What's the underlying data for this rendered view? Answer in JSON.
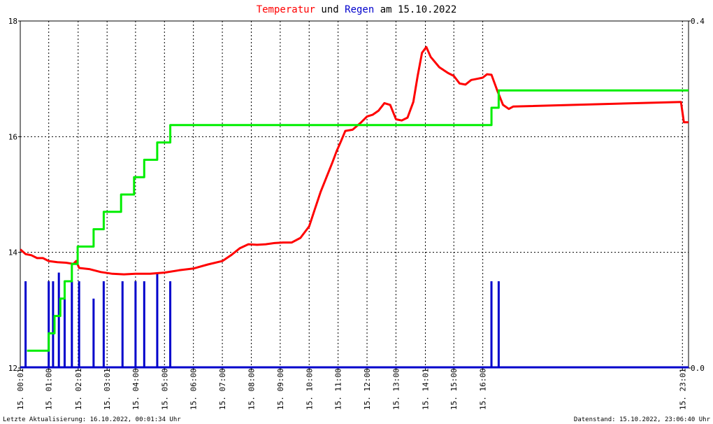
{
  "colors": {
    "temperature": "#ff0000",
    "rain_bars": "#0000cc",
    "rain_cumulative": "#00ee00",
    "grid": "#000000",
    "title_text": "#000000"
  },
  "title": {
    "part1": "Temperatur",
    "part2": " und ",
    "part3": "Regen",
    "part4": " am 15.10.2022"
  },
  "footer": {
    "left": "Letzte Aktualisierung: 16.10.2022, 00:01:34 Uhr",
    "right": "Datenstand: 15.10.2022, 23:06:40 Uhr"
  },
  "chart_data": {
    "type": "line",
    "title": "Temperatur und Regen am 15.10.2022",
    "x_unit": "hours since 00:00 on 15.10.2022",
    "xlim": [
      0.0167,
      23.111
    ],
    "x_ticks": [
      {
        "x": 0.0167,
        "label": "15. 00:01"
      },
      {
        "x": 1.0,
        "label": "15. 01:00"
      },
      {
        "x": 2.0167,
        "label": "15. 02:01"
      },
      {
        "x": 3.0167,
        "label": "15. 03:01"
      },
      {
        "x": 4.0,
        "label": "15. 04:00"
      },
      {
        "x": 5.0,
        "label": "15. 05:00"
      },
      {
        "x": 6.0,
        "label": "15. 06:00"
      },
      {
        "x": 7.0,
        "label": "15. 07:00"
      },
      {
        "x": 8.0,
        "label": "15. 08:00"
      },
      {
        "x": 9.0,
        "label": "15. 09:00"
      },
      {
        "x": 10.0,
        "label": "15. 10:00"
      },
      {
        "x": 11.0,
        "label": "15. 11:00"
      },
      {
        "x": 12.0,
        "label": "15. 12:00"
      },
      {
        "x": 13.0,
        "label": "15. 13:00"
      },
      {
        "x": 14.0167,
        "label": "15. 14:01"
      },
      {
        "x": 15.0,
        "label": "15. 15:00"
      },
      {
        "x": 16.0,
        "label": "15. 16:00"
      },
      {
        "x": 22.9,
        "label": "15. 23:01"
      }
    ],
    "y_left": {
      "lim": [
        12,
        18
      ],
      "ticks": [
        12,
        14,
        16,
        18
      ],
      "labels": [
        "12",
        "14",
        "16",
        "18"
      ]
    },
    "y_right": {
      "lim": [
        0,
        0.4
      ],
      "ticks": [
        0,
        0.4
      ],
      "labels": [
        "0.0",
        "0.4"
      ]
    },
    "grid": true,
    "series": [
      {
        "name": "Temperatur",
        "axis": "left",
        "color": "#ff0000",
        "points": [
          [
            0.02,
            14.05
          ],
          [
            0.2,
            13.97
          ],
          [
            0.4,
            13.95
          ],
          [
            0.6,
            13.9
          ],
          [
            0.8,
            13.9
          ],
          [
            1.0,
            13.85
          ],
          [
            1.3,
            13.83
          ],
          [
            1.6,
            13.82
          ],
          [
            1.85,
            13.8
          ],
          [
            1.95,
            13.85
          ],
          [
            2.05,
            13.73
          ],
          [
            2.4,
            13.71
          ],
          [
            2.8,
            13.66
          ],
          [
            3.2,
            13.63
          ],
          [
            3.6,
            13.62
          ],
          [
            4.0,
            13.63
          ],
          [
            4.5,
            13.63
          ],
          [
            5.0,
            13.65
          ],
          [
            5.5,
            13.69
          ],
          [
            6.0,
            13.72
          ],
          [
            6.5,
            13.79
          ],
          [
            7.0,
            13.85
          ],
          [
            7.3,
            13.95
          ],
          [
            7.6,
            14.07
          ],
          [
            7.9,
            14.14
          ],
          [
            8.2,
            14.13
          ],
          [
            8.5,
            14.14
          ],
          [
            8.8,
            14.16
          ],
          [
            9.1,
            14.17
          ],
          [
            9.4,
            14.17
          ],
          [
            9.7,
            14.25
          ],
          [
            10.0,
            14.45
          ],
          [
            10.2,
            14.75
          ],
          [
            10.4,
            15.05
          ],
          [
            10.6,
            15.3
          ],
          [
            10.8,
            15.55
          ],
          [
            10.95,
            15.75
          ],
          [
            11.1,
            15.92
          ],
          [
            11.25,
            16.1
          ],
          [
            11.5,
            16.12
          ],
          [
            11.8,
            16.25
          ],
          [
            12.0,
            16.35
          ],
          [
            12.2,
            16.38
          ],
          [
            12.4,
            16.45
          ],
          [
            12.6,
            16.58
          ],
          [
            12.8,
            16.55
          ],
          [
            13.0,
            16.3
          ],
          [
            13.2,
            16.28
          ],
          [
            13.4,
            16.33
          ],
          [
            13.6,
            16.6
          ],
          [
            13.75,
            17.05
          ],
          [
            13.9,
            17.45
          ],
          [
            14.05,
            17.55
          ],
          [
            14.2,
            17.38
          ],
          [
            14.5,
            17.2
          ],
          [
            14.8,
            17.1
          ],
          [
            15.0,
            17.05
          ],
          [
            15.2,
            16.92
          ],
          [
            15.4,
            16.9
          ],
          [
            15.6,
            16.98
          ],
          [
            15.8,
            17.0
          ],
          [
            16.0,
            17.02
          ],
          [
            16.15,
            17.08
          ],
          [
            16.3,
            17.07
          ],
          [
            16.5,
            16.8
          ],
          [
            16.7,
            16.55
          ],
          [
            16.9,
            16.48
          ],
          [
            17.05,
            16.52
          ],
          [
            22.85,
            16.6
          ],
          [
            22.95,
            16.25
          ],
          [
            23.11,
            16.25
          ]
        ]
      },
      {
        "name": "Regen kumuliert",
        "axis": "right",
        "color": "#00ee00",
        "points": [
          [
            0.25,
            0.02
          ],
          [
            1.0,
            0.02
          ],
          [
            1.0,
            0.04
          ],
          [
            1.2,
            0.04
          ],
          [
            1.2,
            0.06
          ],
          [
            1.4,
            0.06
          ],
          [
            1.4,
            0.08
          ],
          [
            1.55,
            0.08
          ],
          [
            1.55,
            0.1
          ],
          [
            1.8,
            0.1
          ],
          [
            1.8,
            0.12
          ],
          [
            2.0,
            0.12
          ],
          [
            2.0,
            0.14
          ],
          [
            2.55,
            0.14
          ],
          [
            2.55,
            0.16
          ],
          [
            2.9,
            0.16
          ],
          [
            2.9,
            0.18
          ],
          [
            3.5,
            0.18
          ],
          [
            3.5,
            0.2
          ],
          [
            3.95,
            0.2
          ],
          [
            3.95,
            0.22
          ],
          [
            4.3,
            0.22
          ],
          [
            4.3,
            0.24
          ],
          [
            4.75,
            0.24
          ],
          [
            4.75,
            0.26
          ],
          [
            5.2,
            0.26
          ],
          [
            5.2,
            0.28
          ],
          [
            16.3,
            0.28
          ],
          [
            16.3,
            0.3
          ],
          [
            16.55,
            0.3
          ],
          [
            16.55,
            0.32
          ],
          [
            23.11,
            0.32
          ]
        ]
      }
    ],
    "bars": {
      "name": "Regen",
      "axis": "right",
      "color": "#0000cc",
      "items": [
        {
          "x": 0.2,
          "value": 0.1
        },
        {
          "x": 1.0,
          "value": 0.1
        },
        {
          "x": 1.15,
          "value": 0.1
        },
        {
          "x": 1.35,
          "value": 0.11
        },
        {
          "x": 1.55,
          "value": 0.1
        },
        {
          "x": 1.8,
          "value": 0.1
        },
        {
          "x": 2.05,
          "value": 0.1
        },
        {
          "x": 2.55,
          "value": 0.08
        },
        {
          "x": 2.9,
          "value": 0.1
        },
        {
          "x": 3.55,
          "value": 0.1
        },
        {
          "x": 4.0,
          "value": 0.1
        },
        {
          "x": 4.3,
          "value": 0.1
        },
        {
          "x": 4.75,
          "value": 0.11
        },
        {
          "x": 5.2,
          "value": 0.1
        },
        {
          "x": 16.3,
          "value": 0.1
        },
        {
          "x": 16.55,
          "value": 0.1
        }
      ]
    }
  }
}
